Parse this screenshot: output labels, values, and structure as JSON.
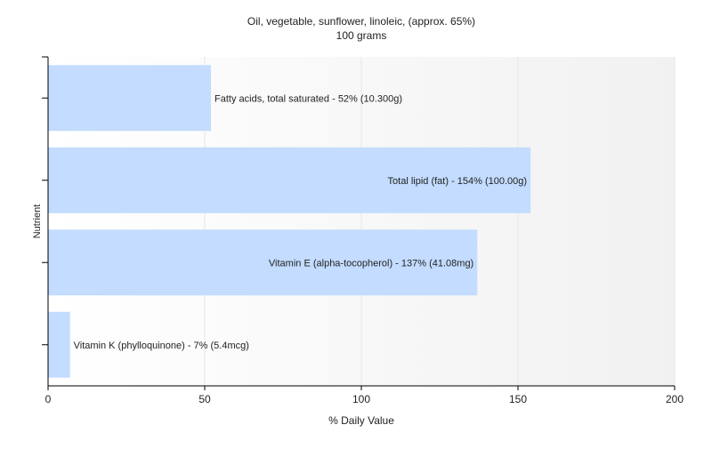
{
  "chart_data": {
    "type": "bar",
    "orientation": "horizontal",
    "title": "Oil, vegetable, sunflower, linoleic, (approx. 65%)",
    "subtitle": "100 grams",
    "xlabel": "% Daily Value",
    "ylabel": "Nutrient",
    "xlim": [
      0,
      200
    ],
    "xticks": [
      0,
      50,
      100,
      150,
      200
    ],
    "grid": true,
    "categories": [
      "Fatty acids, total saturated",
      "Total lipid (fat)",
      "Vitamin E (alpha-tocopherol)",
      "Vitamin K (phylloquinone)"
    ],
    "values": [
      52,
      154,
      137,
      7
    ],
    "bar_labels": [
      "Fatty acids, total saturated - 52% (10.300g)",
      "Total lipid (fat) - 154% (100.00g)",
      "Vitamin E (alpha-tocopherol) - 137% (41.08mg)",
      "Vitamin K (phylloquinone) - 7% (5.4mcg)"
    ],
    "colors": {
      "bar": "#c3dcff",
      "axis": "#000000",
      "grid": "#e6e6e6"
    }
  }
}
